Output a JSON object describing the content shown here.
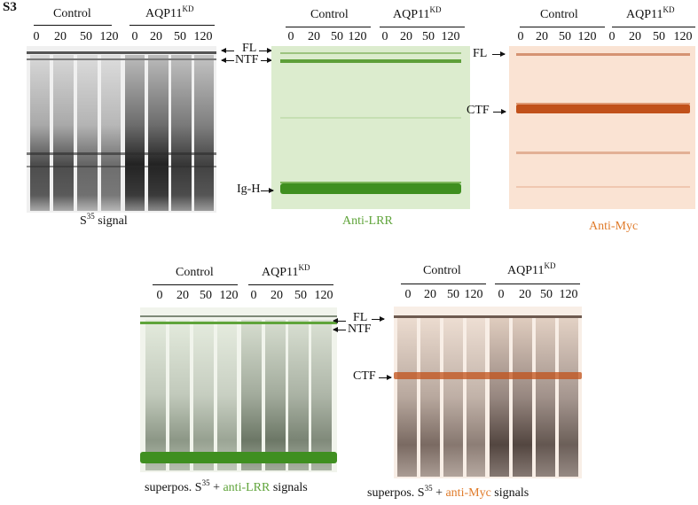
{
  "figure_label": "S3",
  "groups": {
    "control": "Control",
    "kd_prefix": "AQP11",
    "kd_sup": "KD"
  },
  "timepoints": [
    "0",
    "20",
    "50",
    "120"
  ],
  "bands": {
    "fl": "FL",
    "ntf": "NTF",
    "ctf": "CTF",
    "igh": "Ig-H"
  },
  "captions": {
    "s35_prefix": "S",
    "s35_sup": "35",
    "s35_suffix": " signal",
    "anti_lrr": "Anti-LRR",
    "anti_myc": "Anti-Myc",
    "superpos_prefix": "superpos. S",
    "superpos_sup": "35",
    "plus": " + ",
    "lrr_colored": "anti-LRR",
    "myc_colored": "anti-Myc",
    "signals": " signals"
  },
  "colors": {
    "green_label": "#5fa43a",
    "orange_label": "#e07b2a",
    "s35_bg": "#eeeeee",
    "lrr_bg": "#dfeed2",
    "lrr_band": "#3f8f20",
    "myc_bg": "#fbe6d8",
    "myc_band": "#c1511a"
  }
}
